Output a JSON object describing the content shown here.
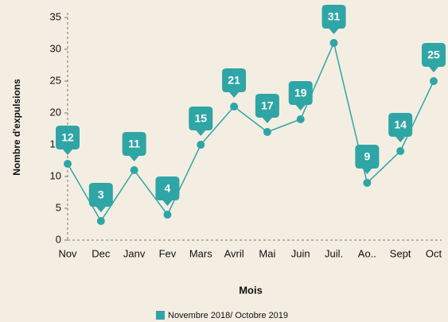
{
  "chart_data": {
    "type": "line",
    "categories": [
      "Nov",
      "Dec",
      "Janv",
      "Fev",
      "Mars",
      "Avril",
      "Mai",
      "Juin",
      "Juil.",
      "Ao..",
      "Sept",
      "Oct"
    ],
    "series": [
      {
        "name": "Novembre 2018/ Octobre 2019",
        "color": "#2fa5a5",
        "values": [
          12,
          3,
          11,
          4,
          15,
          21,
          17,
          19,
          31,
          9,
          14,
          25
        ]
      }
    ],
    "ylim": [
      0,
      35
    ],
    "yticks": [
      0,
      5,
      10,
      15,
      20,
      25,
      30,
      35
    ],
    "ylabel": "Nombre d'expulsions",
    "xlabel": "Mois",
    "legend": "bottom"
  }
}
